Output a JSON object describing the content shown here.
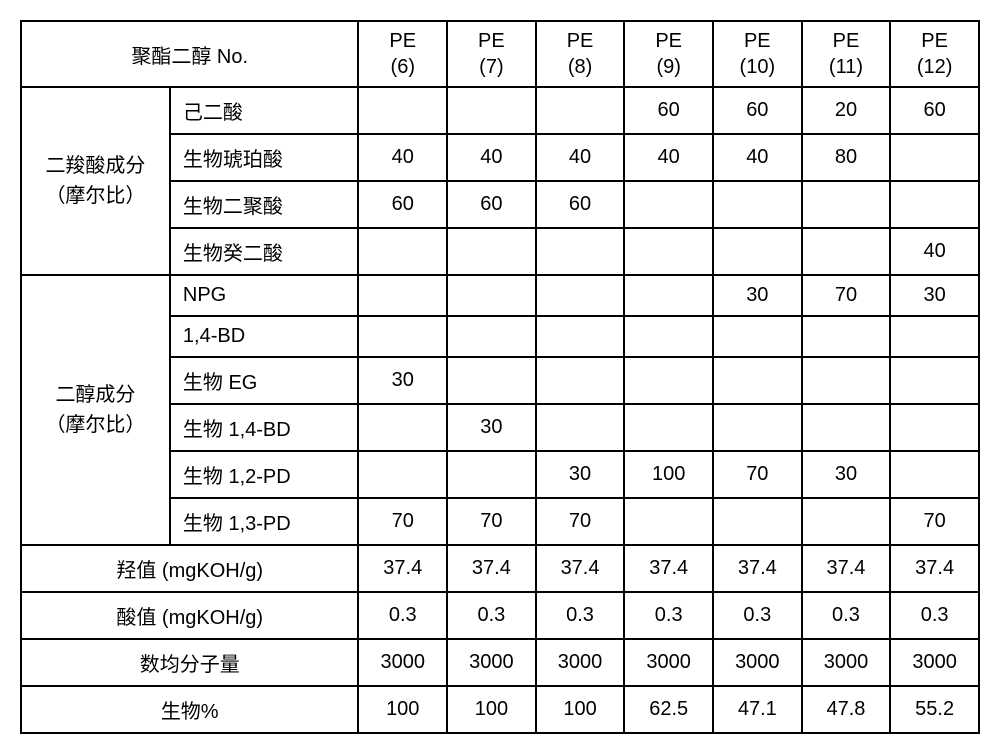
{
  "header": {
    "title": "聚酯二醇 No.",
    "columns": [
      "PE\n(6)",
      "PE\n(7)",
      "PE\n(8)",
      "PE\n(9)",
      "PE\n(10)",
      "PE\n(11)",
      "PE\n(12)"
    ]
  },
  "groups": [
    {
      "label": "二羧酸成分\n（摩尔比）",
      "rows": [
        {
          "name": "己二酸",
          "vals": [
            "",
            "",
            "",
            "60",
            "60",
            "20",
            "60"
          ]
        },
        {
          "name": "生物琥珀酸",
          "vals": [
            "40",
            "40",
            "40",
            "40",
            "40",
            "80",
            ""
          ]
        },
        {
          "name": "生物二聚酸",
          "vals": [
            "60",
            "60",
            "60",
            "",
            "",
            "",
            ""
          ]
        },
        {
          "name": "生物癸二酸",
          "vals": [
            "",
            "",
            "",
            "",
            "",
            "",
            "40"
          ]
        }
      ]
    },
    {
      "label": "二醇成分\n（摩尔比）",
      "rows": [
        {
          "name": "NPG",
          "vals": [
            "",
            "",
            "",
            "",
            "30",
            "70",
            "30"
          ]
        },
        {
          "name": "1,4-BD",
          "vals": [
            "",
            "",
            "",
            "",
            "",
            "",
            ""
          ]
        },
        {
          "name": "生物 EG",
          "vals": [
            "30",
            "",
            "",
            "",
            "",
            "",
            ""
          ]
        },
        {
          "name": "生物 1,4-BD",
          "vals": [
            "",
            "30",
            "",
            "",
            "",
            "",
            ""
          ]
        },
        {
          "name": "生物 1,2-PD",
          "vals": [
            "",
            "",
            "30",
            "100",
            "70",
            "30",
            ""
          ]
        },
        {
          "name": "生物 1,3-PD",
          "vals": [
            "70",
            "70",
            "70",
            "",
            "",
            "",
            "70"
          ]
        }
      ]
    }
  ],
  "summaries": [
    {
      "label": "羟值 (mgKOH/g)",
      "vals": [
        "37.4",
        "37.4",
        "37.4",
        "37.4",
        "37.4",
        "37.4",
        "37.4"
      ]
    },
    {
      "label": "酸值 (mgKOH/g)",
      "vals": [
        "0.3",
        "0.3",
        "0.3",
        "0.3",
        "0.3",
        "0.3",
        "0.3"
      ]
    },
    {
      "label": "数均分子量",
      "vals": [
        "3000",
        "3000",
        "3000",
        "3000",
        "3000",
        "3000",
        "3000"
      ]
    },
    {
      "label": "生物%",
      "vals": [
        "100",
        "100",
        "100",
        "62.5",
        "47.1",
        "47.8",
        "55.2"
      ]
    }
  ],
  "style": {
    "border_color": "#000000",
    "background_color": "#ffffff",
    "font_size": 20,
    "col_widths": {
      "group": 150,
      "component": 190,
      "data": 89
    }
  }
}
